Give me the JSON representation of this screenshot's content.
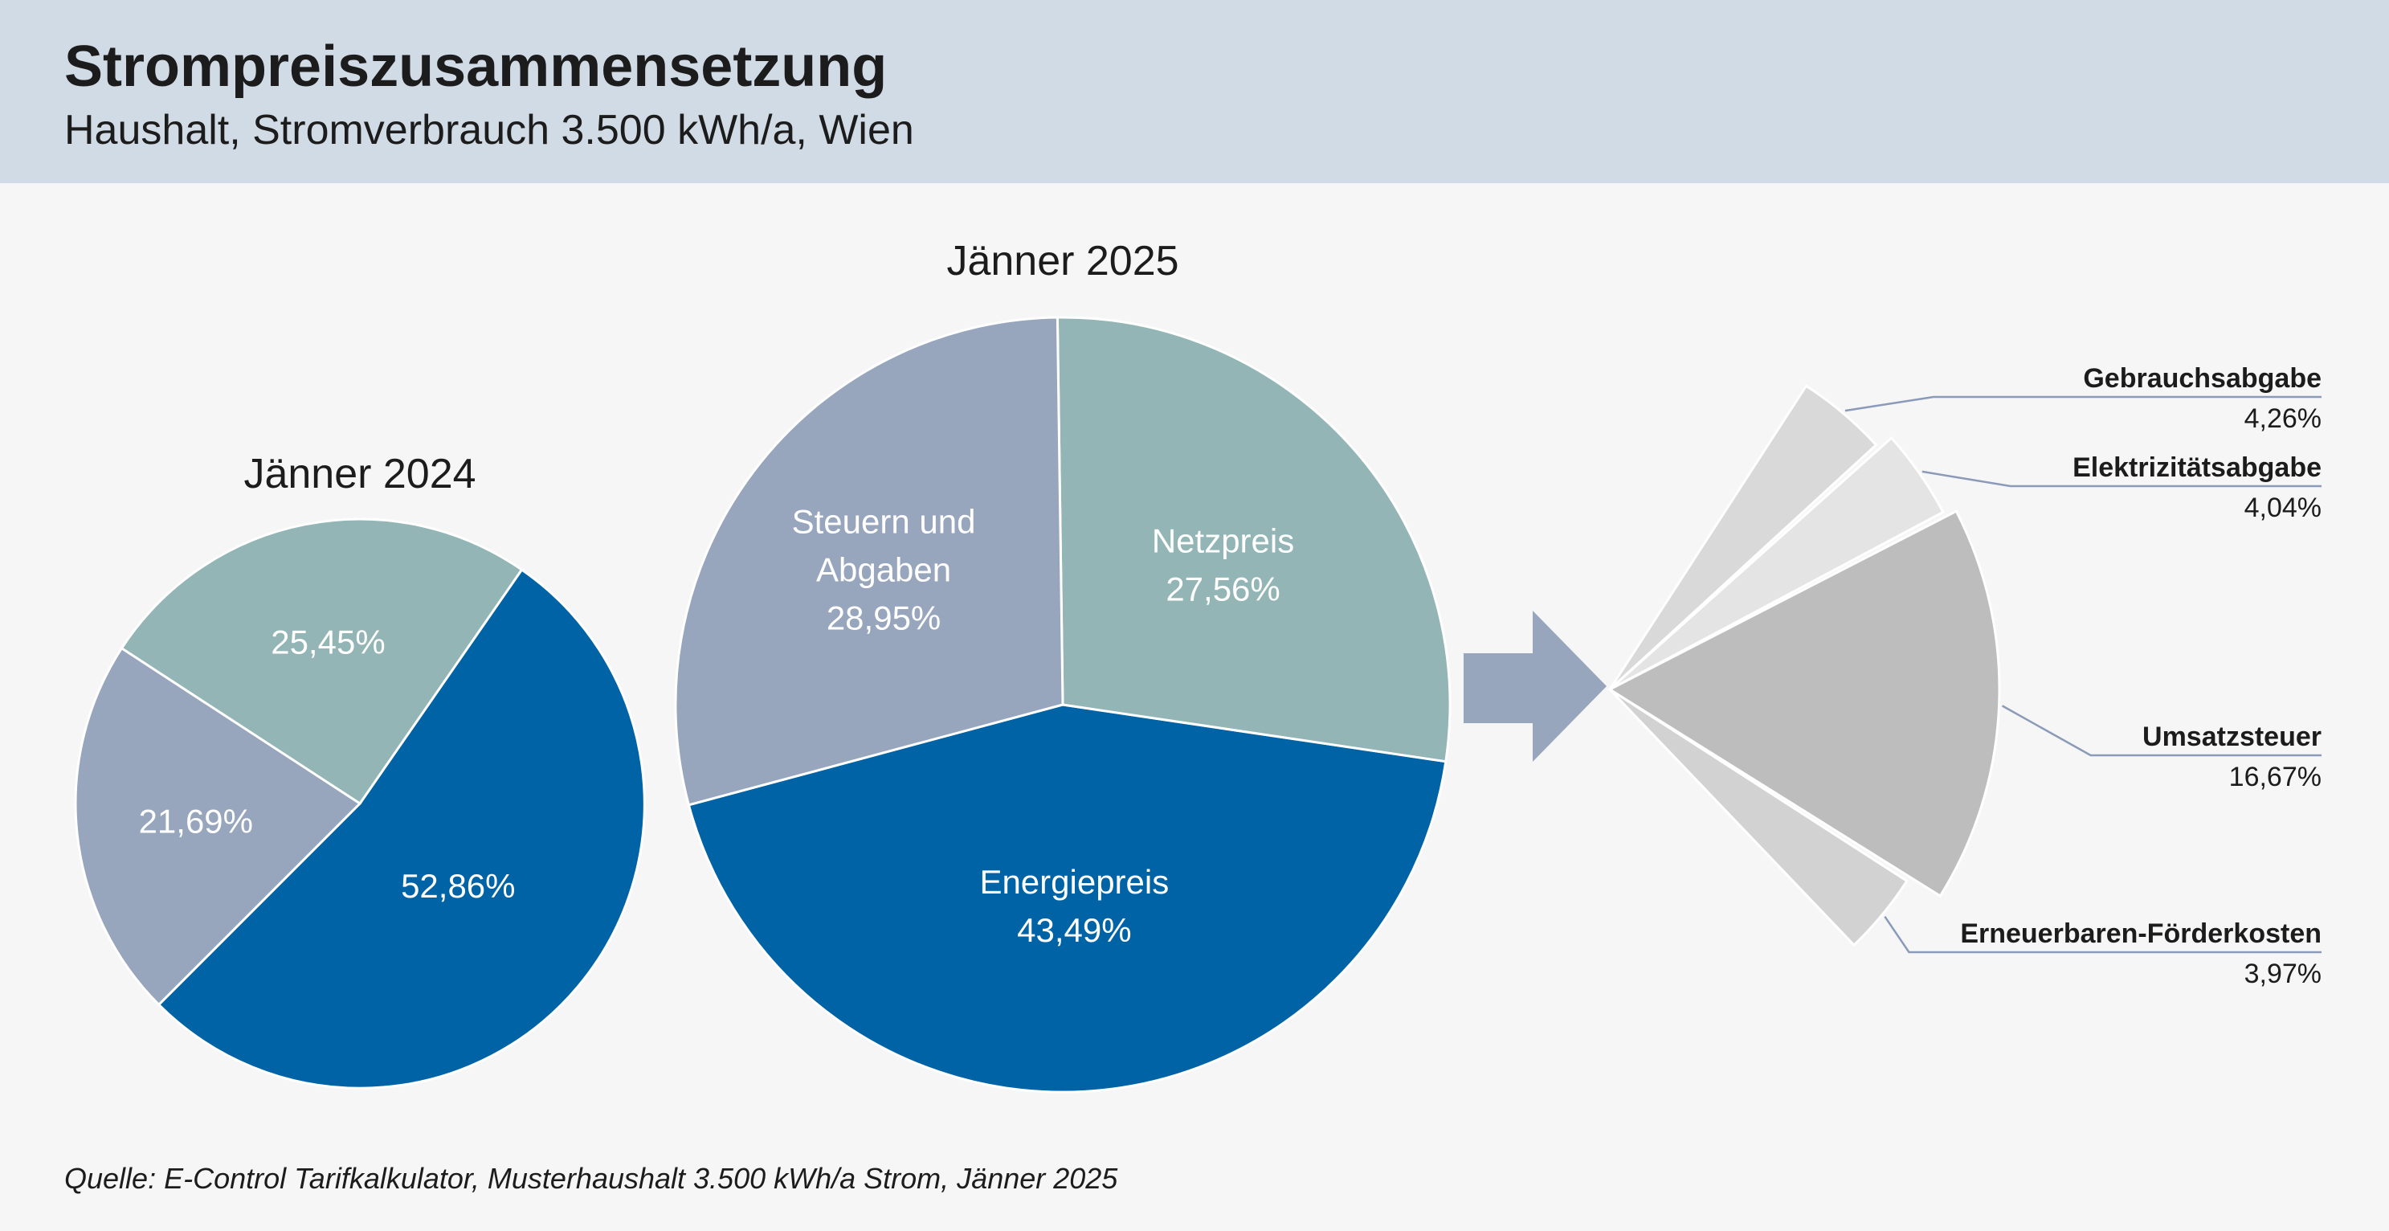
{
  "header": {
    "title": "Strompreiszusammensetzung",
    "subtitle": "Haushalt, Stromverbrauch 3.500 kWh/a, Wien"
  },
  "footer": {
    "source": "Quelle: E-Control Tarifkalkulator, Musterhaushalt 3.500 kWh/a Strom, Jänner 2025"
  },
  "colors": {
    "header_bg": "#d0dbe6",
    "energiepreis": "#0063a6",
    "netzpreis": "#93b5b5",
    "steuern": "#97a6bd",
    "arrow": "#97a6bd",
    "gebrauchsabgabe": "#d9d9d9",
    "elektrizitaetsabgabe": "#e4e4e4",
    "umsatzsteuer": "#bdbdbd",
    "erneuerbaren": "#d2d2d2"
  },
  "chart_data": [
    {
      "type": "pie",
      "title": "Jänner 2024",
      "slices": [
        {
          "name": "",
          "value": 52.86,
          "label": "52,86%"
        },
        {
          "name": "",
          "value": 25.45,
          "label": "25,45%"
        },
        {
          "name": "",
          "value": 21.69,
          "label": "21,69%"
        }
      ]
    },
    {
      "type": "pie",
      "title": "Jänner 2025",
      "slices": [
        {
          "name": "Energiepreis",
          "value": 43.49,
          "label": "43,49%"
        },
        {
          "name": "Netzpreis",
          "value": 27.56,
          "label": "27,56%"
        },
        {
          "name": "Steuern und Abgaben",
          "value": 28.95,
          "label": "28,95%"
        }
      ]
    },
    {
      "type": "pie",
      "title": "",
      "note_from_image": "breakdown of Steuern und Abgaben (exploded sector)",
      "slices": [
        {
          "name": "Gebrauchsabgabe",
          "value": 4.26,
          "label": "4,26%"
        },
        {
          "name": "Elektrizitätsabgabe",
          "value": 4.04,
          "label": "4,04%"
        },
        {
          "name": "Umsatzsteuer",
          "value": 16.67,
          "label": "16,67%"
        },
        {
          "name": "Erneuerbaren-Förderkosten",
          "value": 3.97,
          "label": "3,97%"
        }
      ]
    }
  ]
}
